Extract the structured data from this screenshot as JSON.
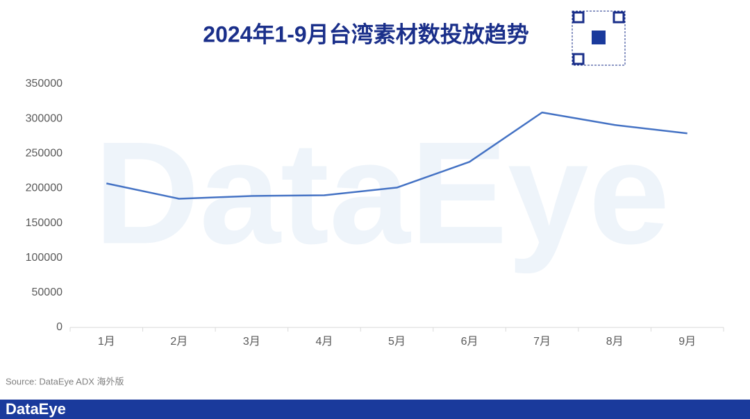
{
  "chart_data": {
    "type": "line",
    "title": "2024年1-9月台湾素材数投放趋势",
    "categories": [
      "1月",
      "2月",
      "3月",
      "4月",
      "5月",
      "6月",
      "7月",
      "8月",
      "9月"
    ],
    "series": [
      {
        "name": "素材数",
        "color": "#4472c4",
        "values": [
          207000,
          185000,
          189000,
          190000,
          201000,
          238000,
          309000,
          291000,
          279000
        ]
      }
    ],
    "ylim": [
      0,
      350000
    ],
    "yticks": [
      0,
      50000,
      100000,
      150000,
      200000,
      250000,
      300000,
      350000
    ],
    "grid": false,
    "legend": false,
    "source": "Source: DataEye ADX 海外版",
    "watermark": "DataEye",
    "brand": "DataEye"
  }
}
